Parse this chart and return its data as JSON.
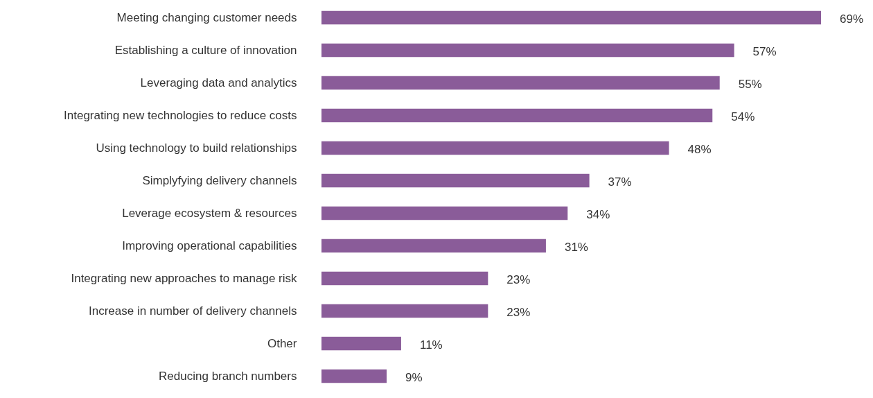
{
  "chart_data": {
    "type": "bar",
    "orientation": "horizontal",
    "categories": [
      "Meeting changing customer needs",
      "Establishing a culture of innovation",
      "Leveraging data and analytics",
      "Integrating new technologies to reduce costs",
      "Using technology to build relationships",
      "Simplyfying delivery channels",
      "Leverage ecosystem & resources",
      "Improving operational capabilities",
      "Integrating new approaches to manage risk",
      "Increase in number of delivery channels",
      "Other",
      "Reducing branch numbers"
    ],
    "values": [
      69,
      57,
      55,
      54,
      48,
      37,
      34,
      31,
      23,
      23,
      11,
      9
    ],
    "value_labels": [
      "69%",
      "57%",
      "55%",
      "54%",
      "48%",
      "37%",
      "34%",
      "31%",
      "23%",
      "23%",
      "11%",
      "9%"
    ],
    "color": "#8a5c99"
  }
}
